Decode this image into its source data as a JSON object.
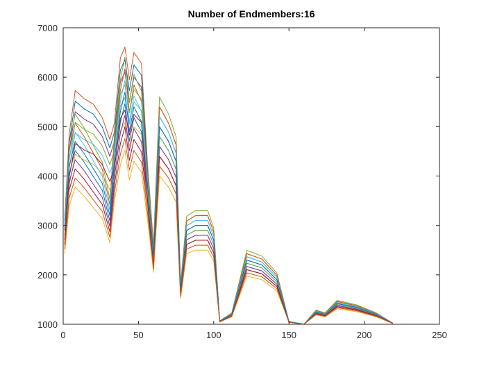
{
  "chart_data": {
    "type": "line",
    "title": "Number of Endmembers:16",
    "x": [
      1,
      4,
      8,
      14,
      20,
      26,
      31,
      34,
      38,
      41,
      44,
      47,
      52,
      57,
      60,
      64,
      70,
      75,
      78,
      82,
      88,
      96,
      100,
      104,
      112,
      122,
      132,
      142,
      150,
      160,
      168,
      174,
      182,
      195,
      208,
      219
    ],
    "xlim": [
      0,
      250
    ],
    "xticks": [
      0,
      50,
      100,
      150,
      200,
      250
    ],
    "ylim": [
      1000,
      7000
    ],
    "yticks": [
      1000,
      2000,
      3000,
      4000,
      5000,
      6000,
      7000
    ],
    "series": [
      {
        "color": "#0072BD",
        "values": [
          2805,
          4040,
          4515,
          4278,
          3993,
          3708,
          3090,
          4135,
          5085,
          5465,
          4705,
          5180,
          4895,
          3375,
          2330,
          4800,
          4515,
          4135,
          1665,
          2805,
          2900,
          2900,
          2615,
          1057,
          1190,
          2235,
          2140,
          1855,
          1048,
          1000,
          1238,
          1190,
          1399,
          1323,
          1190,
          1019
        ]
      },
      {
        "color": "#D95319",
        "values": [
          3090,
          4850,
          5730,
          5565,
          5455,
          5180,
          4740,
          5070,
          6390,
          6610,
          5950,
          6500,
          6280,
          3750,
          2540,
          5400,
          5070,
          4630,
          1770,
          3090,
          3200,
          3200,
          2870,
          1066,
          1220,
          2430,
          2320,
          1990,
          1055,
          1000,
          1275,
          1220,
          1462,
          1374,
          1220,
          1022
        ]
      },
      {
        "color": "#EDB120",
        "values": [
          2425,
          3400,
          3775,
          3588,
          3363,
          3138,
          2650,
          3475,
          4225,
          4525,
          3925,
          4300,
          4075,
          2875,
          2050,
          4000,
          3775,
          3475,
          1525,
          2425,
          2500,
          2500,
          2275,
          1045,
          1150,
          1975,
          1900,
          1675,
          1038,
          1000,
          1188,
          1150,
          1315,
          1255,
          1150,
          1015
        ]
      },
      {
        "color": "#7E2F8E",
        "values": [
          2900,
          4500,
          5300,
          5150,
          5050,
          4800,
          4400,
          4700,
          5900,
          6100,
          5500,
          6000,
          5800,
          3500,
          2400,
          5000,
          4700,
          4300,
          1700,
          2900,
          3000,
          3000,
          2700,
          1060,
          1200,
          2300,
          2200,
          1900,
          1050,
          1000,
          1250,
          1200,
          1420,
          1340,
          1200,
          1020
        ]
      },
      {
        "color": "#77AC30",
        "values": [
          3185,
          4680,
          5255,
          4968,
          4623,
          4278,
          3530,
          4795,
          5945,
          6405,
          5485,
          6060,
          5715,
          3875,
          2610,
          5600,
          5255,
          4795,
          1805,
          3185,
          3300,
          3300,
          2955,
          1069,
          1230,
          2495,
          2380,
          2035,
          1058,
          1000,
          1288,
          1230,
          1483,
          1391,
          1230,
          1023
        ]
      },
      {
        "color": "#4DBEEE",
        "values": [
          2710,
          4150,
          4870,
          4735,
          4645,
          4420,
          4060,
          4330,
          5410,
          5590,
          5050,
          5500,
          5320,
          3250,
          2260,
          4600,
          4330,
          3970,
          1630,
          2710,
          2800,
          2800,
          2530,
          1054,
          1180,
          2170,
          2080,
          1810,
          1045,
          1000,
          1225,
          1180,
          1378,
          1306,
          1180,
          1018
        ]
      },
      {
        "color": "#A2142F",
        "values": [
          2615,
          3720,
          4145,
          3933,
          3678,
          3423,
          2870,
          3805,
          4655,
          4995,
          4315,
          4740,
          4485,
          3125,
          2190,
          4400,
          4145,
          3805,
          1595,
          2615,
          2700,
          2700,
          2445,
          1051,
          1170,
          2105,
          2020,
          1765,
          1043,
          1000,
          1213,
          1170,
          1357,
          1289,
          1170,
          1017
        ]
      },
      {
        "color": "#0072BD",
        "values": [
          2995,
          4675,
          5515,
          5358,
          5253,
          4990,
          4570,
          4885,
          6145,
          6355,
          5725,
          6250,
          6040,
          3625,
          2470,
          5200,
          4885,
          4465,
          1735,
          2995,
          3100,
          3100,
          2785,
          1063,
          1210,
          2365,
          2260,
          1945,
          1053,
          1000,
          1263,
          1210,
          1441,
          1357,
          1210,
          1021
        ]
      },
      {
        "color": "#D95319",
        "values": [
          3090,
          4520,
          5070,
          4795,
          4465,
          4135,
          3420,
          4630,
          5730,
          6170,
          5290,
          5840,
          5510,
          3750,
          2540,
          5400,
          5070,
          4630,
          1770,
          3090,
          3200,
          3200,
          2870,
          1066,
          1220,
          2430,
          2320,
          1990,
          1055,
          1000,
          1275,
          1220,
          1462,
          1374,
          1220,
          1022
        ]
      },
      {
        "color": "#EDB120",
        "values": [
          2520,
          3800,
          4440,
          4320,
          4240,
          4040,
          3720,
          3960,
          4920,
          5080,
          4600,
          5000,
          4840,
          3000,
          2120,
          4200,
          3960,
          3640,
          1560,
          2520,
          2600,
          2600,
          2360,
          1048,
          1160,
          2040,
          1960,
          1720,
          1040,
          1000,
          1200,
          1160,
          1336,
          1272,
          1160,
          1016
        ]
      },
      {
        "color": "#7E2F8E",
        "values": [
          2710,
          3880,
          4330,
          4105,
          3835,
          3565,
          2980,
          3970,
          4870,
          5230,
          4510,
          4960,
          4690,
          3250,
          2260,
          4600,
          4330,
          3970,
          1630,
          2710,
          2800,
          2800,
          2530,
          1054,
          1180,
          2170,
          2080,
          1810,
          1045,
          1000,
          1225,
          1180,
          1378,
          1306,
          1180,
          1018
        ]
      },
      {
        "color": "#77AC30",
        "values": [
          2805,
          4325,
          5085,
          4943,
          4848,
          4610,
          4230,
          4515,
          5655,
          5845,
          5275,
          5750,
          5560,
          3375,
          2330,
          4800,
          4515,
          4135,
          1665,
          2805,
          2900,
          2900,
          2615,
          1057,
          1190,
          2235,
          2140,
          1855,
          1048,
          1000,
          1238,
          1190,
          1399,
          1323,
          1190,
          1019
        ]
      },
      {
        "color": "#4DBEEE",
        "values": [
          2995,
          4360,
          4885,
          4623,
          4308,
          3993,
          3310,
          4465,
          5515,
          5935,
          5095,
          5620,
          5305,
          3625,
          2470,
          5200,
          4885,
          4465,
          1735,
          2995,
          3100,
          3100,
          2785,
          1063,
          1210,
          2365,
          2260,
          1945,
          1053,
          1000,
          1263,
          1210,
          1441,
          1357,
          1210,
          1021
        ]
      },
      {
        "color": "#A2142F",
        "values": [
          2615,
          3975,
          4655,
          4528,
          4443,
          4230,
          3890,
          4145,
          5165,
          5335,
          4825,
          5250,
          5080,
          3125,
          2190,
          4400,
          4145,
          3805,
          1595,
          2615,
          2700,
          2700,
          2445,
          1051,
          1170,
          2105,
          2020,
          1765,
          1043,
          1000,
          1213,
          1170,
          1357,
          1289,
          1170,
          1017
        ]
      },
      {
        "color": "#0072BD",
        "values": [
          2900,
          4200,
          4700,
          4450,
          4150,
          3850,
          3200,
          4300,
          5300,
          5700,
          4900,
          5400,
          5100,
          3500,
          2400,
          5000,
          4700,
          4300,
          1700,
          2900,
          3000,
          3000,
          2700,
          1060,
          1200,
          2300,
          2200,
          1900,
          1050,
          1000,
          1250,
          1200,
          1420,
          1340,
          1200,
          1020
        ]
      },
      {
        "color": "#D95319",
        "values": [
          2520,
          3560,
          3960,
          3760,
          3520,
          3280,
          2760,
          3640,
          4440,
          4760,
          4120,
          4520,
          4280,
          3000,
          2120,
          4200,
          3960,
          3640,
          1560,
          2520,
          2600,
          2600,
          2360,
          1048,
          1160,
          2040,
          1960,
          1720,
          1040,
          1000,
          1200,
          1160,
          1336,
          1272,
          1160,
          1016
        ]
      }
    ]
  }
}
